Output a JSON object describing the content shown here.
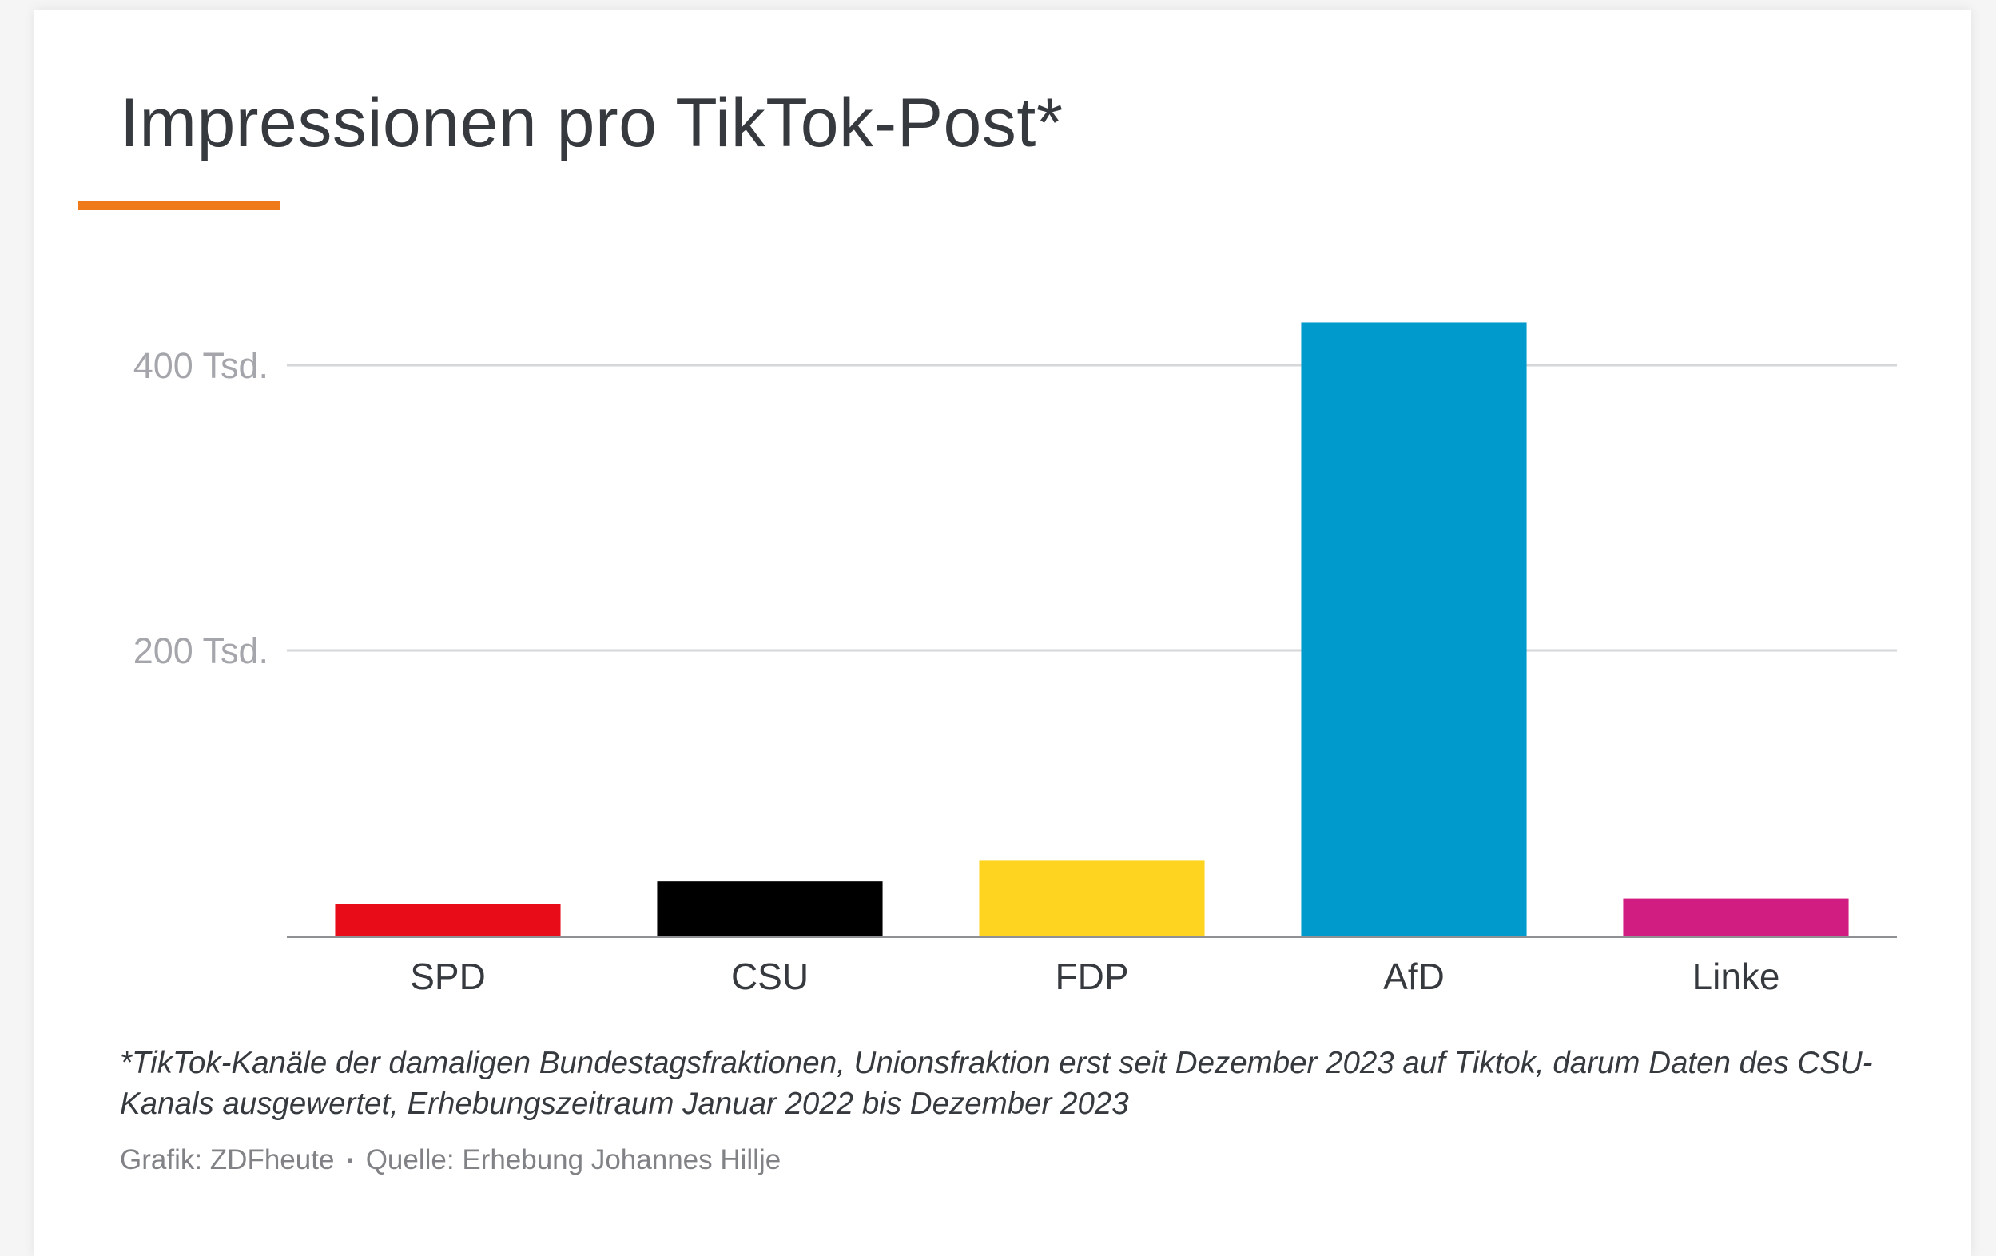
{
  "header": {
    "title": "Impressionen pro TikTok-Post*",
    "accent_color": "#ee7a1a"
  },
  "chart_data": {
    "type": "bar",
    "title": "Impressionen pro TikTok-Post*",
    "xlabel": "",
    "ylabel": "",
    "categories": [
      "SPD",
      "CSU",
      "FDP",
      "AfD",
      "Linke"
    ],
    "values": [
      22,
      38,
      53,
      430,
      26
    ],
    "value_unit": "Tsd.",
    "colors": [
      "#e80c19",
      "#000000",
      "#fed420",
      "#009acd",
      "#d11d81"
    ],
    "ylim": [
      0,
      430
    ],
    "yticks": [
      {
        "value": 200,
        "label": "200 Tsd."
      },
      {
        "value": 400,
        "label": "400 Tsd."
      }
    ],
    "grid": true,
    "legend": "none"
  },
  "footer": {
    "footnote": "*TikTok-Kanäle der damaligen Bundestagsfraktionen, Unionsfraktion erst seit Dezember 2023 auf Tiktok, darum Daten des CSU-Kanals ausgewertet, Erhebungszeitraum Januar 2022 bis Dezember 2023",
    "credit": "Grafik: ZDFheute",
    "separator": "▪",
    "source": "Quelle: Erhebung Johannes Hillje"
  }
}
